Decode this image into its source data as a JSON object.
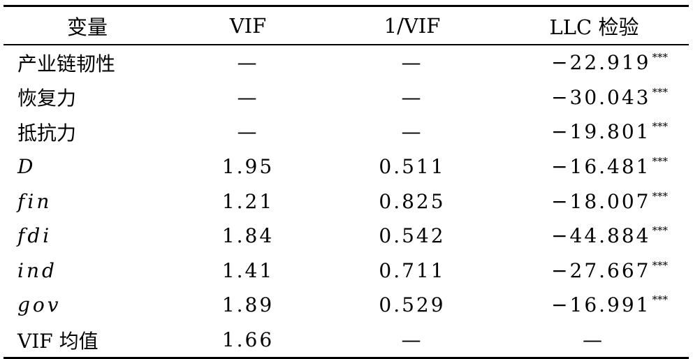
{
  "table": {
    "headers": [
      "变量",
      "VIF",
      "1/VIF",
      "LLC 检验"
    ],
    "rows": [
      {
        "var": "产业链韧性",
        "vif": "—",
        "inv_vif": "—",
        "llc": "−22.919",
        "stars": "***"
      },
      {
        "var": "恢复力",
        "vif": "—",
        "inv_vif": "—",
        "llc": "−30.043",
        "stars": "***"
      },
      {
        "var": "抵抗力",
        "vif": "—",
        "inv_vif": "—",
        "llc": "−19.801",
        "stars": "***"
      },
      {
        "var": "D",
        "vif": "1.95",
        "inv_vif": "0.511",
        "llc": "−16.481",
        "stars": "***"
      },
      {
        "var": "fin",
        "vif": "1.21",
        "inv_vif": "0.825",
        "llc": "−18.007",
        "stars": "***"
      },
      {
        "var": "fdi",
        "vif": "1.84",
        "inv_vif": "0.542",
        "llc": "−44.884",
        "stars": "***"
      },
      {
        "var": "ind",
        "vif": "1.41",
        "inv_vif": "0.711",
        "llc": "−27.667",
        "stars": "***"
      },
      {
        "var": "gov",
        "vif": "1.89",
        "inv_vif": "0.529",
        "llc": "−16.991",
        "stars": "***"
      },
      {
        "var": "VIF 均值",
        "vif": "1.66",
        "inv_vif": "—",
        "llc": "—",
        "stars": ""
      }
    ]
  }
}
